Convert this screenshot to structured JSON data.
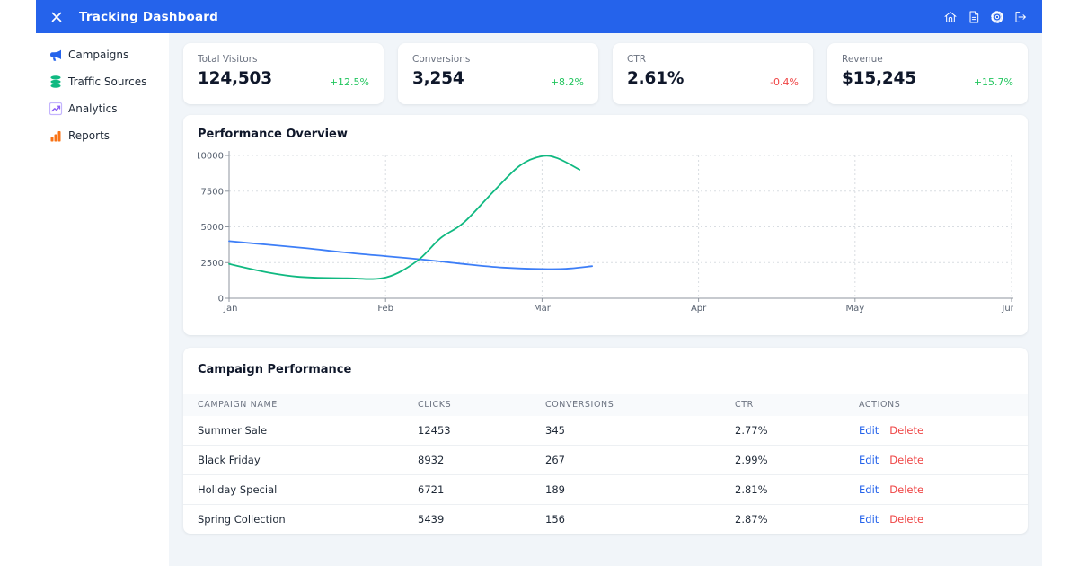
{
  "header": {
    "title": "Tracking Dashboard",
    "close_icon": "x-icon",
    "icons": [
      {
        "name": "home-icon"
      },
      {
        "name": "document-icon"
      },
      {
        "name": "settings-gear-icon"
      },
      {
        "name": "logout-icon"
      }
    ]
  },
  "sidebar": {
    "items": [
      {
        "label": "Campaigns",
        "icon": "megaphone-icon",
        "icon_color": "#2563eb"
      },
      {
        "label": "Traffic Sources",
        "icon": "database-icon",
        "icon_color": "#10b981"
      },
      {
        "label": "Analytics",
        "icon": "line-chart-icon",
        "icon_color": "#8b5cf6"
      },
      {
        "label": "Reports",
        "icon": "bar-chart-icon",
        "icon_color": "#f97316"
      }
    ]
  },
  "stats": [
    {
      "label": "Total Visitors",
      "value": "124,503",
      "change": "+12.5%",
      "trend": "up"
    },
    {
      "label": "Conversions",
      "value": "3,254",
      "change": "+8.2%",
      "trend": "up"
    },
    {
      "label": "CTR",
      "value": "2.61%",
      "change": "-0.4%",
      "trend": "down"
    },
    {
      "label": "Revenue",
      "value": "$15,245",
      "change": "+15.7%",
      "trend": "up"
    }
  ],
  "chart_card": {
    "title": "Performance Overview"
  },
  "chart_data": {
    "type": "line",
    "title": "Performance Overview",
    "x_categories": [
      "Jan",
      "Feb",
      "Mar",
      "Apr",
      "May",
      "Jun"
    ],
    "ylim": [
      0,
      10000
    ],
    "y_ticks": [
      0,
      2500,
      5000,
      7500,
      10000
    ],
    "grid": "dotted",
    "legend": "none",
    "series": [
      {
        "name": "blue-series",
        "color": "#3d7ef7",
        "points": [
          [
            0,
            4000
          ],
          [
            0.25,
            3750
          ],
          [
            0.5,
            3500
          ],
          [
            0.75,
            3200
          ],
          [
            1,
            2950
          ],
          [
            1.25,
            2700
          ],
          [
            1.5,
            2400
          ],
          [
            1.75,
            2150
          ],
          [
            2,
            2050
          ],
          [
            2.15,
            2060
          ],
          [
            2.32,
            2250
          ]
        ]
      },
      {
        "name": "green-series",
        "color": "#10b981",
        "points": [
          [
            0,
            2400
          ],
          [
            0.25,
            1800
          ],
          [
            0.45,
            1500
          ],
          [
            0.75,
            1400
          ],
          [
            1,
            1450
          ],
          [
            1.2,
            2600
          ],
          [
            1.35,
            4200
          ],
          [
            1.5,
            5300
          ],
          [
            1.7,
            7600
          ],
          [
            1.86,
            9300
          ],
          [
            2,
            9950
          ],
          [
            2.1,
            9800
          ],
          [
            2.24,
            9000
          ]
        ]
      }
    ]
  },
  "table": {
    "title": "Campaign Performance",
    "columns": [
      "Campaign Name",
      "Clicks",
      "Conversions",
      "CTR",
      "Actions"
    ],
    "actions": {
      "edit": "Edit",
      "delete": "Delete"
    },
    "rows": [
      {
        "name": "Summer Sale",
        "clicks": "12453",
        "conversions": "345",
        "ctr": "2.77%"
      },
      {
        "name": "Black Friday",
        "clicks": "8932",
        "conversions": "267",
        "ctr": "2.99%"
      },
      {
        "name": "Holiday Special",
        "clicks": "6721",
        "conversions": "189",
        "ctr": "2.81%"
      },
      {
        "name": "Spring Collection",
        "clicks": "5439",
        "conversions": "156",
        "ctr": "2.87%"
      }
    ]
  },
  "colors": {
    "header_bg": "#2563eb",
    "content_bg": "#f1f5f9",
    "card_bg": "#ffffff",
    "positive": "#22c55e",
    "negative": "#ef4444",
    "edit_link": "#2563eb",
    "delete_link": "#ef4444",
    "chart_blue": "#3d7ef7",
    "chart_green": "#10b981"
  }
}
